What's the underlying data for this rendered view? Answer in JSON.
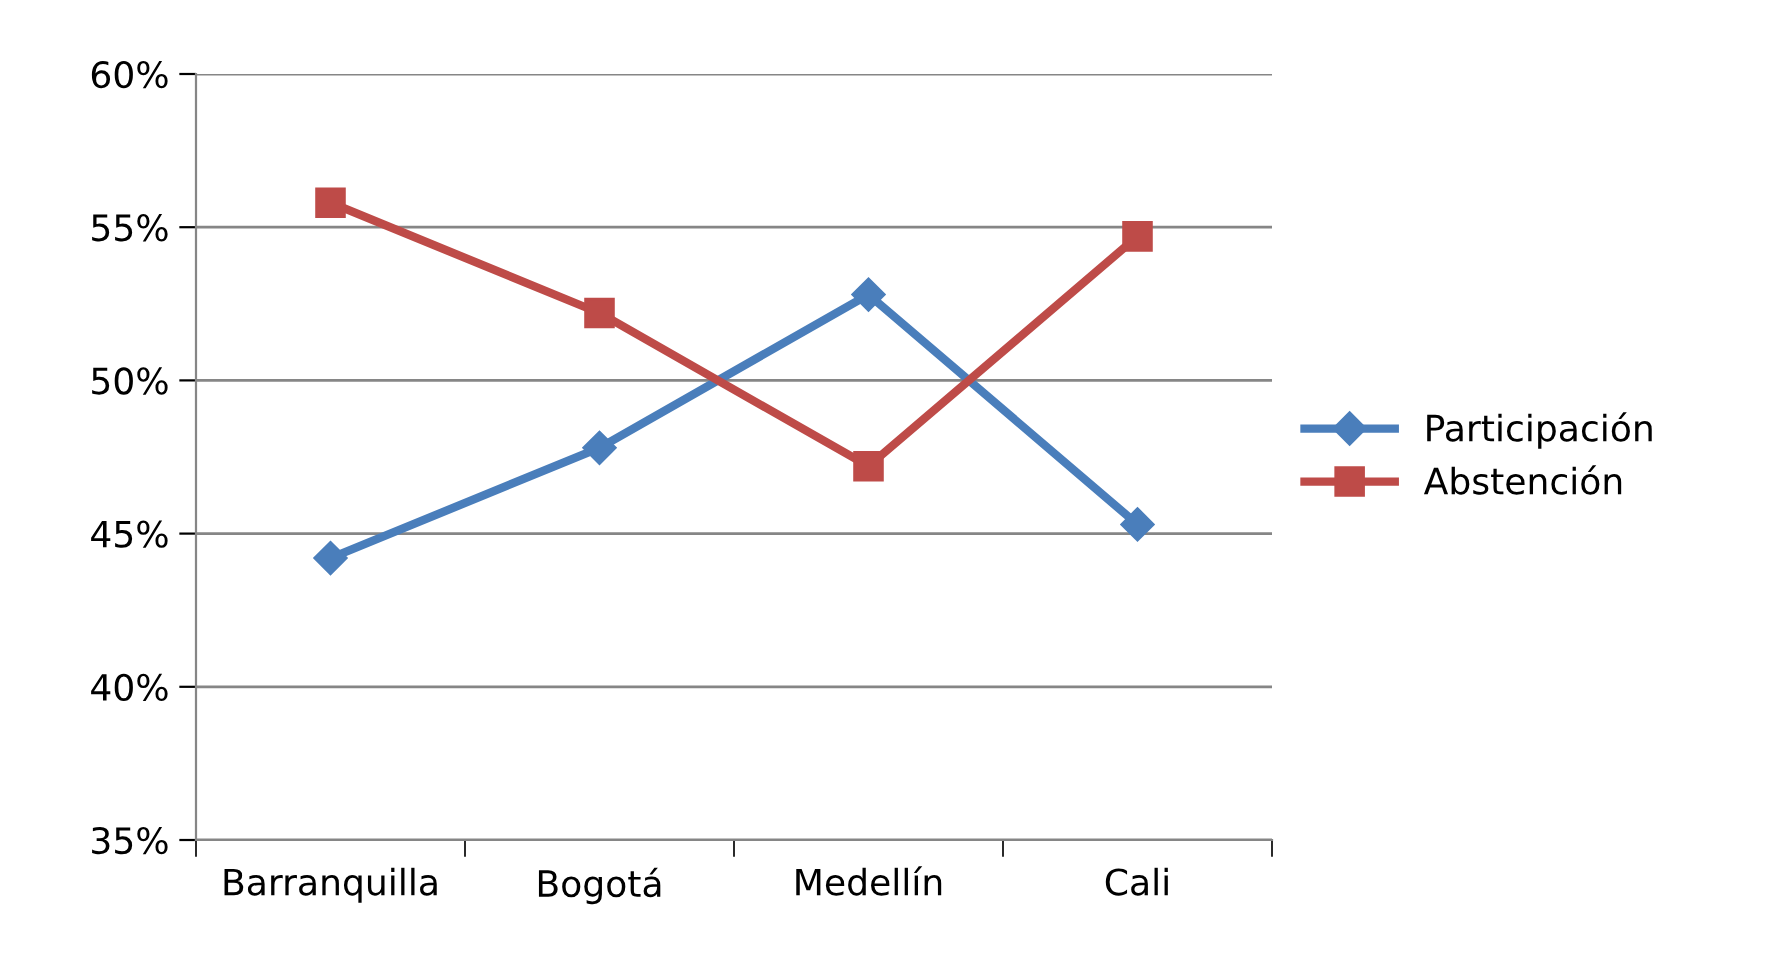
{
  "chart_data": {
    "type": "line",
    "categories": [
      "Barranquilla",
      "Bogotá",
      "Medellín",
      "Cali"
    ],
    "series": [
      {
        "name": "Participación",
        "color": "#4a7ebb",
        "marker": "diamond",
        "values": [
          44.2,
          47.8,
          52.8,
          45.3
        ]
      },
      {
        "name": "Abstención",
        "color": "#be4b48",
        "marker": "square",
        "values": [
          55.8,
          52.2,
          47.2,
          54.7
        ]
      }
    ],
    "ylim": [
      35,
      60
    ],
    "yticks": [
      {
        "value": 35,
        "label": "35%"
      },
      {
        "value": 40,
        "label": "40%"
      },
      {
        "value": 45,
        "label": "45%"
      },
      {
        "value": 50,
        "label": "50%"
      },
      {
        "value": 55,
        "label": "55%"
      },
      {
        "value": 60,
        "label": "60%"
      }
    ],
    "grid": "y",
    "legend": "right"
  }
}
